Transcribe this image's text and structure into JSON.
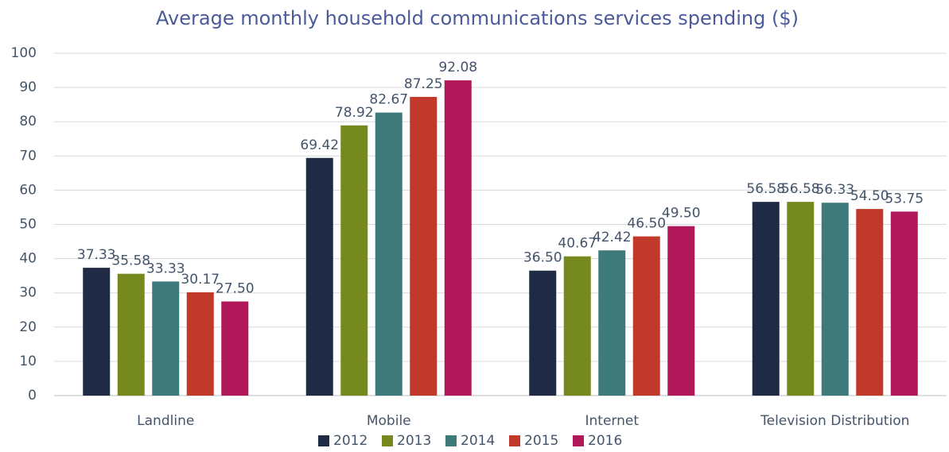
{
  "chart_data": {
    "type": "bar",
    "title": "Average monthly household communications services spending ($)",
    "categories": [
      "Landline",
      "Mobile",
      "Internet",
      "Television Distribution"
    ],
    "series": [
      {
        "name": "2012",
        "color": "#1f2a44",
        "values": [
          37.33,
          69.42,
          36.5,
          56.58
        ],
        "value_labels": [
          "37.33",
          "69.42",
          "36.50",
          "56.58"
        ]
      },
      {
        "name": "2013",
        "color": "#76891f",
        "values": [
          35.58,
          78.92,
          40.67,
          56.58
        ],
        "value_labels": [
          "35.58",
          "78.92",
          "40.67",
          "56.58"
        ]
      },
      {
        "name": "2014",
        "color": "#3f7a7a",
        "values": [
          33.33,
          82.67,
          42.42,
          56.33
        ],
        "value_labels": [
          "33.33",
          "82.67",
          "42.42",
          "56.33"
        ]
      },
      {
        "name": "2015",
        "color": "#c0392b",
        "values": [
          30.17,
          87.25,
          46.5,
          54.5
        ],
        "value_labels": [
          "30.17",
          "87.25",
          "46.50",
          "54.50"
        ]
      },
      {
        "name": "2016",
        "color": "#b0185a",
        "values": [
          27.5,
          92.08,
          49.5,
          53.75
        ],
        "value_labels": [
          "27.50",
          "92.08",
          "49.50",
          "53.75"
        ]
      }
    ],
    "ylim": [
      0,
      100
    ],
    "yticks": [
      0,
      10,
      20,
      30,
      40,
      50,
      60,
      70,
      80,
      90,
      100
    ],
    "grid": true,
    "legend": "bottom"
  }
}
